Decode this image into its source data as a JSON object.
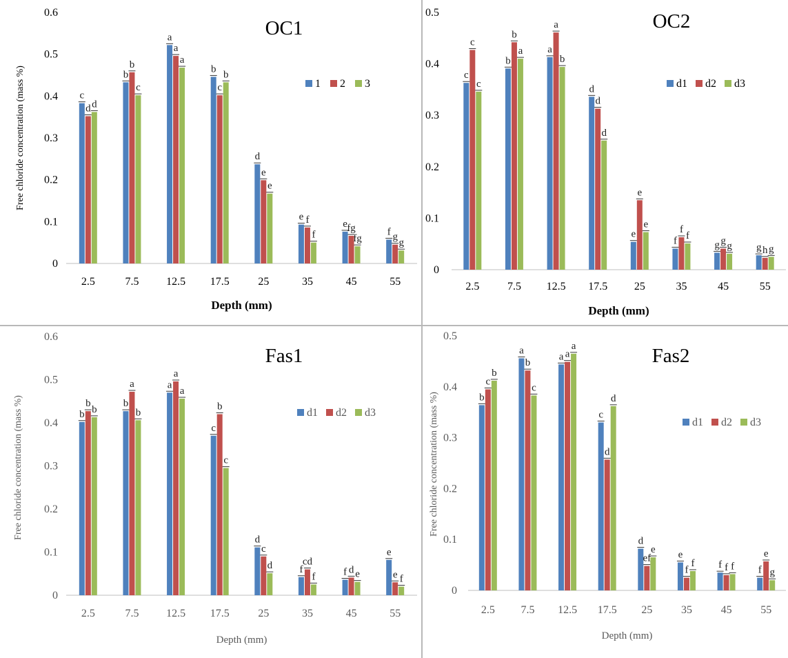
{
  "colors": {
    "series1": "#4f81bd",
    "series2": "#c0504d",
    "series3": "#9bbb59",
    "text": "#000000",
    "sans_text": "#595959"
  },
  "chart_data": [
    {
      "type": "bar",
      "title": "OC1",
      "xlabel": "Depth (mm)",
      "ylabel": "Free chloride concentration (mass %)",
      "categories": [
        "2.5",
        "7.5",
        "12.5",
        "17.5",
        "25",
        "35",
        "45",
        "55"
      ],
      "ylim": [
        0,
        0.6
      ],
      "yticks": [
        "0",
        "0.1",
        "0.2",
        "0.3",
        "0.4",
        "0.5",
        "0.6"
      ],
      "legend_position": "right",
      "series": [
        {
          "name": "1",
          "values": [
            0.383,
            0.433,
            0.522,
            0.446,
            0.237,
            0.093,
            0.076,
            0.057
          ],
          "labels": [
            "c",
            "b",
            "a",
            "b",
            "d",
            "e",
            "e",
            "f"
          ]
        },
        {
          "name": "2",
          "values": [
            0.352,
            0.457,
            0.496,
            0.402,
            0.199,
            0.086,
            0.066,
            0.045
          ],
          "labels": [
            "d",
            "b",
            "a",
            "c",
            "e",
            "f",
            "fg",
            "g"
          ]
        },
        {
          "name": "3",
          "values": [
            0.362,
            0.402,
            0.468,
            0.433,
            0.167,
            0.05,
            0.041,
            0.031
          ],
          "labels": [
            "d",
            "c",
            "a",
            "b",
            "e",
            "f",
            "fg",
            "g"
          ]
        }
      ]
    },
    {
      "type": "bar",
      "title": "OC2",
      "xlabel": "Depth (mm)",
      "ylabel": "Free chloride concentration (mass %)",
      "categories": [
        "2.5",
        "7.5",
        "12.5",
        "17.5",
        "25",
        "35",
        "45",
        "55"
      ],
      "ylim": [
        0,
        0.5
      ],
      "yticks": [
        "0",
        "0.1",
        "0.2",
        "0.3",
        "0.4",
        "0.5"
      ],
      "legend_position": "right",
      "series": [
        {
          "name": "d1",
          "values": [
            0.363,
            0.391,
            0.413,
            0.336,
            0.054,
            0.041,
            0.033,
            0.028
          ],
          "labels": [
            "c",
            "b",
            "a",
            "d",
            "e",
            "f",
            "g",
            "g"
          ]
        },
        {
          "name": "d2",
          "values": [
            0.427,
            0.442,
            0.461,
            0.313,
            0.135,
            0.063,
            0.041,
            0.023
          ],
          "labels": [
            "c",
            "b",
            "a",
            "d",
            "e",
            "f",
            "g",
            "h"
          ]
        },
        {
          "name": "d3",
          "values": [
            0.346,
            0.41,
            0.394,
            0.251,
            0.073,
            0.051,
            0.031,
            0.025
          ],
          "labels": [
            "c",
            "a",
            "b",
            "d",
            "e",
            "f",
            "g",
            "g"
          ]
        }
      ]
    },
    {
      "type": "bar",
      "title": "Fas1",
      "xlabel": "Depth (mm)",
      "ylabel": "Free chloride concentration (mass %)",
      "categories": [
        "2.5",
        "7.5",
        "12.5",
        "17.5",
        "25",
        "35",
        "45",
        "55"
      ],
      "ylim": [
        0,
        0.6
      ],
      "yticks": [
        "0",
        "0.1",
        "0.2",
        "0.3",
        "0.4",
        "0.5",
        "0.6"
      ],
      "legend_position": "right",
      "series": [
        {
          "name": "d1",
          "values": [
            0.402,
            0.427,
            0.47,
            0.37,
            0.111,
            0.042,
            0.036,
            0.082
          ],
          "labels": [
            "b",
            "b",
            "a",
            "c",
            "d",
            "f",
            "f",
            "e"
          ]
        },
        {
          "name": "d2",
          "values": [
            0.427,
            0.472,
            0.496,
            0.42,
            0.09,
            0.06,
            0.041,
            0.03
          ],
          "labels": [
            "b",
            "a",
            "a",
            "b",
            "c",
            "cd",
            "d",
            "e"
          ]
        },
        {
          "name": "d3",
          "values": [
            0.413,
            0.406,
            0.456,
            0.295,
            0.051,
            0.025,
            0.031,
            0.02
          ],
          "labels": [
            "b",
            "b",
            "a",
            "c",
            "d",
            "f",
            "e",
            "f"
          ]
        }
      ]
    },
    {
      "type": "bar",
      "title": "Fas2",
      "xlabel": "Depth (mm)",
      "ylabel": "Free chloride concentration (mass %)",
      "categories": [
        "2.5",
        "7.5",
        "12.5",
        "17.5",
        "25",
        "35",
        "45",
        "55"
      ],
      "ylim": [
        0,
        0.5
      ],
      "yticks": [
        "0",
        "0.1",
        "0.2",
        "0.3",
        "0.4",
        "0.5"
      ],
      "legend_position": "right",
      "series": [
        {
          "name": "d1",
          "values": [
            0.364,
            0.456,
            0.444,
            0.33,
            0.082,
            0.055,
            0.035,
            0.025
          ],
          "labels": [
            "b",
            "a",
            "a",
            "c",
            "d",
            "e",
            "f",
            "f"
          ]
        },
        {
          "name": "d2",
          "values": [
            0.395,
            0.432,
            0.449,
            0.257,
            0.048,
            0.025,
            0.03,
            0.057
          ],
          "labels": [
            "c",
            "b",
            "a",
            "d",
            "ef",
            "f",
            "f",
            "e"
          ]
        },
        {
          "name": "d3",
          "values": [
            0.412,
            0.383,
            0.465,
            0.362,
            0.065,
            0.038,
            0.032,
            0.02
          ],
          "labels": [
            "b",
            "c",
            "a",
            "d",
            "e",
            "f",
            "f",
            "g"
          ]
        }
      ]
    }
  ]
}
